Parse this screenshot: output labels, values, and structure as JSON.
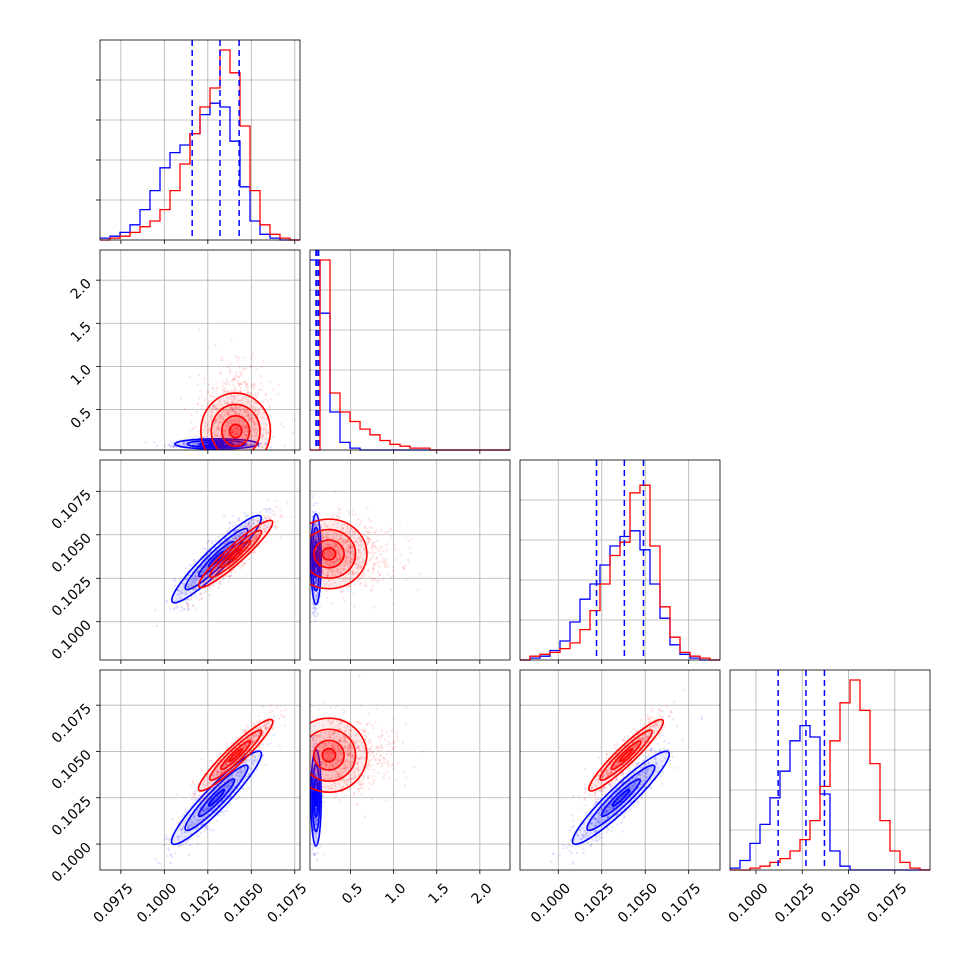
{
  "chart_data": {
    "type": "corner",
    "grid": true,
    "colors": {
      "blue": "#0000ff",
      "red": "#ff0000"
    },
    "series": [
      {
        "color": "blue",
        "quantiles": [
          [
            0.1016,
            0.1032,
            0.1043
          ],
          [
            0.1,
            0.11,
            0.13
          ],
          [
            0.1022,
            0.1038,
            0.1049
          ],
          [
            0.1012,
            0.1027,
            0.1037
          ]
        ],
        "means": [
          0.103,
          0.12,
          0.1036,
          0.1025
        ],
        "sds": [
          0.0012,
          0.03,
          0.0013,
          0.0013
        ],
        "mean_diag": [
          1,
          0,
          1,
          1
        ]
      },
      {
        "color": "red",
        "quantiles": [],
        "means": [
          0.1041,
          0.36,
          0.1039,
          0.1048
        ],
        "sds": [
          0.001,
          0.3,
          0.001,
          0.001
        ],
        "mean_diag": [
          1,
          0,
          1,
          1
        ]
      }
    ],
    "params": [
      {
        "range": [
          0.0963,
          0.1078
        ],
        "ticks": [
          0.0975,
          0.1,
          0.1025,
          0.105,
          0.1075
        ],
        "tick_labels": [
          "0.0975",
          "0.1000",
          "0.1025",
          "0.1050",
          "0.1075"
        ]
      },
      {
        "range": [
          0.03,
          2.35
        ],
        "ticks": [
          0.5,
          1.0,
          1.5,
          2.0
        ],
        "tick_labels": [
          "0.5",
          "1.0",
          "1.5",
          "2.0"
        ]
      },
      {
        "range": [
          0.0978,
          0.1093
        ],
        "ticks": [
          0.1,
          0.1025,
          0.105,
          0.1075
        ],
        "tick_labels": [
          "0.1000",
          "0.1025",
          "0.1050",
          "0.1075"
        ]
      },
      {
        "range": [
          0.0986,
          0.1094
        ],
        "ticks": [
          0.1,
          0.1025,
          0.105,
          0.1075
        ],
        "tick_labels": [
          "0.1000",
          "0.1025",
          "0.1050",
          "0.1075"
        ]
      }
    ],
    "histograms": [
      {
        "param": 0,
        "bins": 20,
        "blue": [
          1,
          2,
          4,
          8,
          16,
          26,
          38,
          46,
          50,
          56,
          66,
          72,
          70,
          52,
          28,
          10,
          3,
          1,
          0,
          0
        ],
        "red": [
          0,
          1,
          2,
          4,
          7,
          10,
          16,
          26,
          40,
          56,
          70,
          80,
          100,
          88,
          60,
          26,
          8,
          3,
          1,
          0
        ]
      },
      {
        "param": 1,
        "bins": 20,
        "blue": [
          100,
          72,
          20,
          4,
          1,
          0,
          0,
          0,
          0,
          0,
          0,
          0,
          0,
          0,
          0,
          0,
          0,
          0,
          0,
          0
        ],
        "red": [
          0,
          100,
          30,
          20,
          15,
          11,
          8,
          5,
          3,
          2,
          1,
          1,
          0,
          0,
          0,
          0,
          0,
          0,
          0,
          0
        ]
      },
      {
        "param": 2,
        "bins": 20,
        "blue": [
          0,
          1,
          2,
          5,
          10,
          20,
          32,
          40,
          50,
          60,
          65,
          68,
          58,
          40,
          22,
          8,
          3,
          1,
          0,
          0
        ],
        "red": [
          0,
          2,
          3,
          4,
          6,
          9,
          16,
          26,
          40,
          55,
          62,
          88,
          92,
          60,
          28,
          12,
          4,
          2,
          1,
          0
        ]
      },
      {
        "param": 3,
        "bins": 20,
        "blue": [
          1,
          5,
          14,
          24,
          38,
          52,
          68,
          76,
          70,
          40,
          10,
          2,
          0,
          0,
          0,
          0,
          0,
          0,
          0,
          0
        ],
        "red": [
          0,
          0,
          1,
          2,
          4,
          6,
          10,
          16,
          26,
          44,
          68,
          88,
          100,
          84,
          56,
          26,
          10,
          4,
          1,
          0
        ]
      }
    ],
    "scatter_panels": [
      {
        "x_param": 0,
        "y_param": 1
      },
      {
        "x_param": 0,
        "y_param": 2
      },
      {
        "x_param": 1,
        "y_param": 2
      },
      {
        "x_param": 0,
        "y_param": 3
      },
      {
        "x_param": 1,
        "y_param": 3
      },
      {
        "x_param": 2,
        "y_param": 3
      }
    ],
    "correlations": {
      "0-2": {
        "blue": 0.9,
        "red": 0.9
      },
      "0-3": {
        "blue": 0.9,
        "red": 0.9
      },
      "2-3": {
        "blue": 0.9,
        "red": 0.9
      },
      "0-1": {
        "blue": 0.0,
        "red": 0.0
      },
      "1-2": {
        "blue": 0.0,
        "red": 0.0
      },
      "1-3": {
        "blue": 0.0,
        "red": 0.0
      }
    }
  }
}
